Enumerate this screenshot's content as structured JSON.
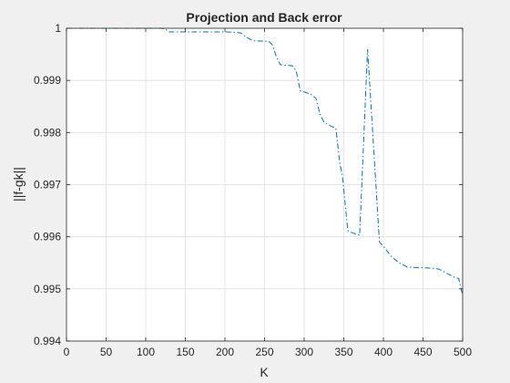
{
  "chart_data": {
    "type": "line",
    "title": "Projection and Back error",
    "xlabel": "K",
    "ylabel": "||f-gk||",
    "xlim": [
      0,
      500
    ],
    "ylim": [
      0.994,
      1.0
    ],
    "xticks": [
      0,
      50,
      100,
      150,
      200,
      250,
      300,
      350,
      400,
      450,
      500
    ],
    "xtick_labels": [
      "0",
      "50",
      "100",
      "150",
      "200",
      "250",
      "300",
      "350",
      "400",
      "450",
      "500"
    ],
    "yticks": [
      0.994,
      0.995,
      0.996,
      0.997,
      0.998,
      0.999,
      1.0
    ],
    "ytick_labels": [
      "0.994",
      "0.995",
      "0.996",
      "0.997",
      "0.998",
      "0.999",
      "1"
    ],
    "grid": true,
    "line_style": "dash-dot",
    "colors": {
      "line": "#0072bd",
      "axes": "#262626",
      "grid": "#dfdfdf",
      "plot_bg": "#ffffff",
      "figure_bg": "#f0f0f0"
    },
    "series": [
      {
        "x": [
          1,
          50,
          100,
          120,
          125,
          130,
          200,
          215,
          220,
          225,
          235,
          255,
          260,
          265,
          270,
          285,
          290,
          295,
          300,
          310,
          315,
          320,
          325,
          330,
          340,
          345,
          348,
          352,
          355,
          360,
          370,
          380,
          395,
          400,
          410,
          420,
          430,
          440,
          460,
          470,
          480,
          490,
          495,
          500
        ],
        "y": [
          1.0,
          1.0,
          1.0,
          1.0,
          0.99998,
          0.99993,
          0.99993,
          0.99992,
          0.99991,
          0.99985,
          0.99976,
          0.99975,
          0.99968,
          0.99945,
          0.9993,
          0.99928,
          0.99918,
          0.9988,
          0.99878,
          0.99872,
          0.99865,
          0.99835,
          0.9982,
          0.99815,
          0.99808,
          0.9974,
          0.9972,
          0.9966,
          0.99612,
          0.99608,
          0.99603,
          0.9996,
          0.9959,
          0.99582,
          0.99562,
          0.9955,
          0.99542,
          0.99541,
          0.9954,
          0.99538,
          0.9953,
          0.99522,
          0.9952,
          0.99488
        ]
      }
    ]
  }
}
